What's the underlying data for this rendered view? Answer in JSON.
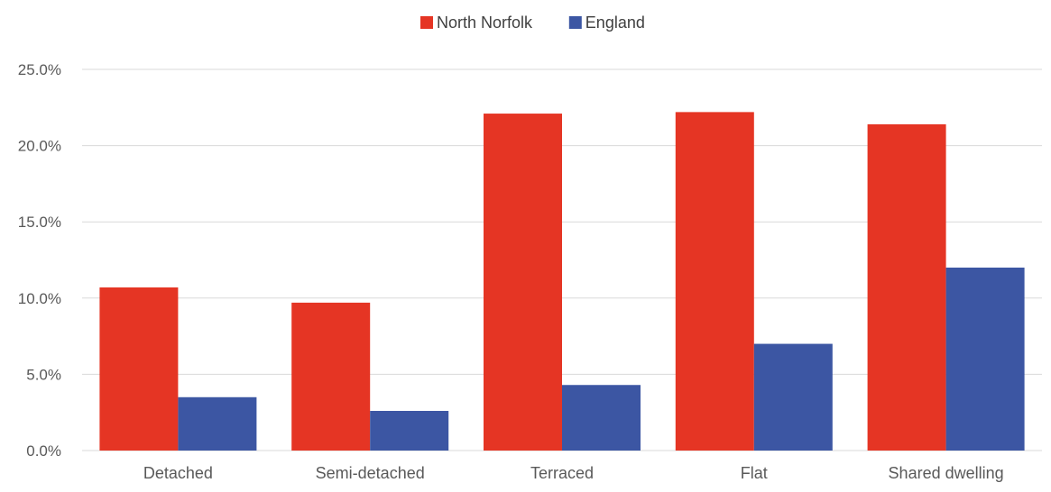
{
  "chart_data": {
    "type": "bar",
    "title": "",
    "xlabel": "",
    "ylabel": "",
    "categories": [
      "Detached",
      "Semi-detached",
      "Terraced",
      "Flat",
      "Shared dwelling"
    ],
    "series": [
      {
        "name": "North Norfolk",
        "color": "#e53524",
        "values": [
          10.7,
          9.7,
          22.1,
          22.2,
          21.4
        ]
      },
      {
        "name": "England",
        "color": "#3c56a3",
        "values": [
          3.5,
          2.6,
          4.3,
          7.0,
          12.0
        ]
      }
    ],
    "ylim": [
      0,
      25
    ],
    "yticks": [
      0,
      5,
      10,
      15,
      20,
      25
    ],
    "ytick_labels": [
      "0.0%",
      "5.0%",
      "10.0%",
      "15.0%",
      "20.0%",
      "25.0%"
    ],
    "grid": true,
    "legend_position": "top-center"
  }
}
